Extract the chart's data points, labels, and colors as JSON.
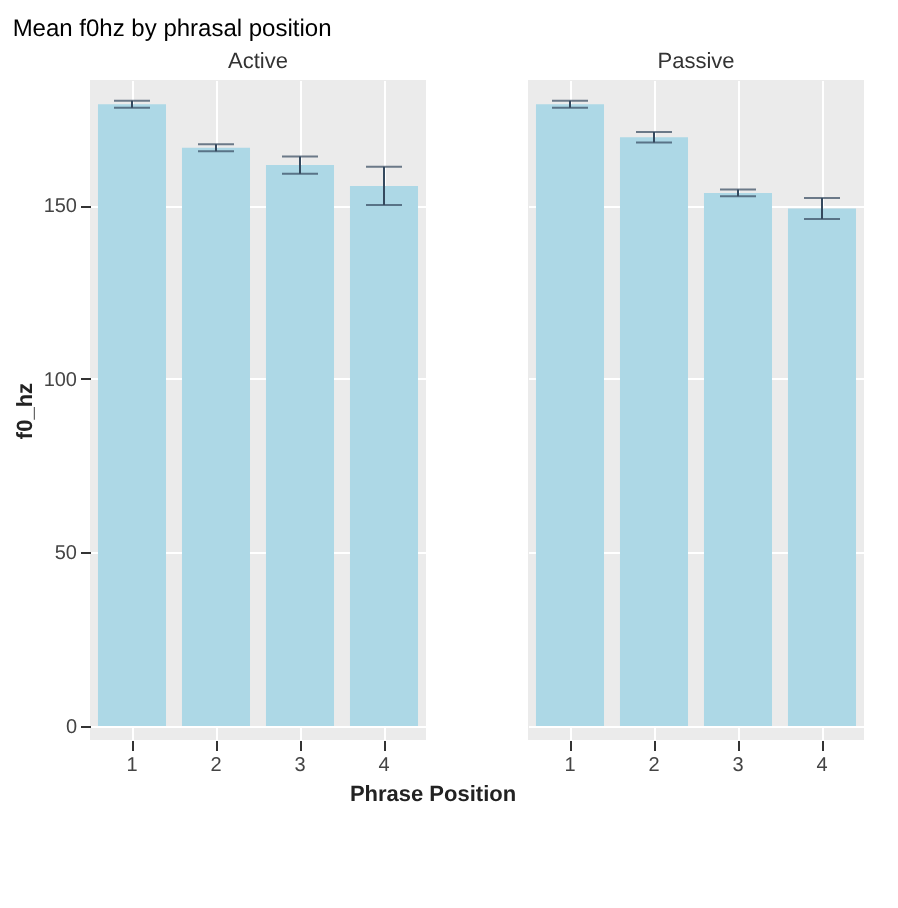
{
  "chart_data": [
    {
      "type": "bar",
      "title": "Mean f0hz by phrasal position",
      "subtitle": "Active",
      "xlabel": "Phrase Position",
      "ylabel": "f0_hz",
      "categories": [
        "1",
        "2",
        "3",
        "4"
      ],
      "values": [
        179,
        166.5,
        161.5,
        155.5
      ],
      "errors": [
        1,
        1,
        2.5,
        5.5
      ],
      "color": "#add8e6",
      "ylim": [
        -4,
        186
      ],
      "yticks": [
        0,
        50,
        100,
        150
      ],
      "grid": true
    },
    {
      "type": "bar",
      "subtitle": "Passive",
      "categories": [
        "1",
        "2",
        "3",
        "4"
      ],
      "values": [
        179,
        169.5,
        153.5,
        149
      ],
      "errors": [
        1,
        1.5,
        1,
        3
      ],
      "color": "#add8e6",
      "ylim": [
        -4,
        186
      ],
      "yticks": [
        0,
        50,
        100,
        150
      ],
      "grid": true,
      "tick_labels": "x"
    }
  ]
}
